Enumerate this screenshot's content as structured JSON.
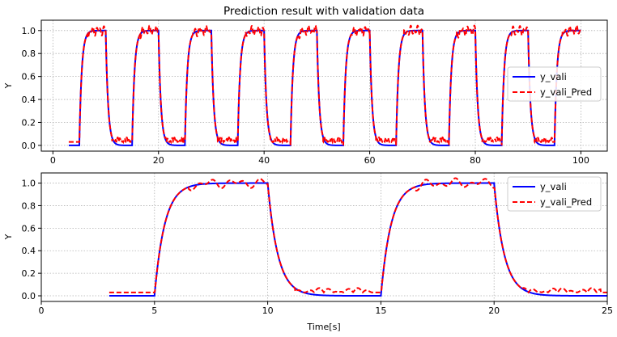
{
  "chart_data": [
    {
      "type": "line",
      "title": "Prediction result with validation data",
      "xlabel": "",
      "ylabel": "Y",
      "xlim": [
        -2.2,
        105
      ],
      "ylim": [
        -0.05,
        1.09
      ],
      "xticks": [
        0,
        20,
        40,
        60,
        80,
        100
      ],
      "xtick_labels": [
        "0",
        "20",
        "40",
        "60",
        "80",
        "100"
      ],
      "yticks": [
        0.0,
        0.2,
        0.4,
        0.6,
        0.8,
        1.0
      ],
      "ytick_labels": [
        "0.0",
        "0.2",
        "0.4",
        "0.6",
        "0.8",
        "1.0"
      ],
      "grid": true,
      "legend_position": "center-right",
      "signal": {
        "t_start": 3,
        "t_end": 100,
        "period": 10,
        "high_from": 5,
        "high_to": 10,
        "time_constant": 0.45,
        "pred_offset_low": 0.03,
        "pred_noise_amplitude": 0.05
      },
      "series": [
        {
          "name": "y_vali",
          "color": "#0000ff",
          "style": "solid"
        },
        {
          "name": "y_vali_Pred",
          "color": "#ff0000",
          "style": "dashed"
        }
      ]
    },
    {
      "type": "line",
      "title": "",
      "xlabel": "Time[s]",
      "ylabel": "Y",
      "xlim": [
        0,
        25
      ],
      "ylim": [
        -0.05,
        1.09
      ],
      "xticks": [
        0,
        5,
        10,
        15,
        20,
        25
      ],
      "xtick_labels": [
        "0",
        "5",
        "10",
        "15",
        "20",
        "25"
      ],
      "yticks": [
        0.0,
        0.2,
        0.4,
        0.6,
        0.8,
        1.0
      ],
      "ytick_labels": [
        "0.0",
        "0.2",
        "0.4",
        "0.6",
        "0.8",
        "1.0"
      ],
      "grid": true,
      "legend_position": "top-right",
      "signal": {
        "t_start": 3,
        "t_end": 25,
        "period": 10,
        "high_from": 5,
        "high_to": 10,
        "time_constant": 0.45,
        "pred_offset_low": 0.03,
        "pred_noise_amplitude": 0.05
      },
      "series": [
        {
          "name": "y_vali",
          "color": "#0000ff",
          "style": "solid"
        },
        {
          "name": "y_vali_Pred",
          "color": "#ff0000",
          "style": "dashed"
        }
      ]
    }
  ]
}
